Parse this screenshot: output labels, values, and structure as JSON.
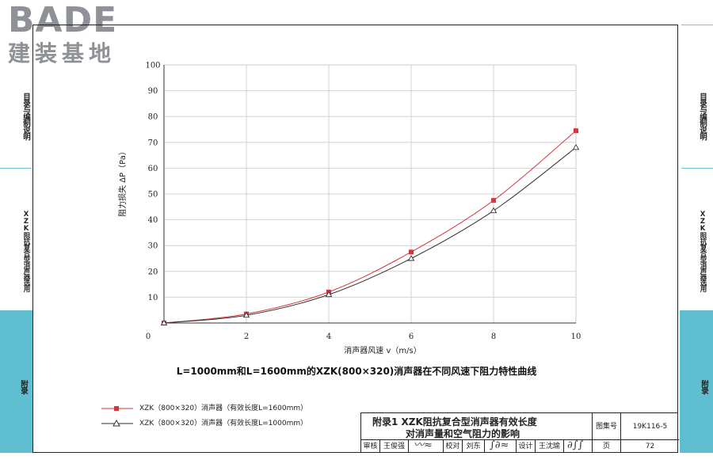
{
  "logo": {
    "brand_en": "BADE",
    "brand_cn": "建装基地"
  },
  "side_tabs": {
    "tab1": "目录与编制说明",
    "tab2": "XZK阻抗复合型消声器选用",
    "tab3": "附录"
  },
  "caption": "L=1000mm和L=1600mm的XZK(800×320)消声器在不同风速下阻力特性曲线",
  "legend": {
    "series1": "XZK（800×320）消声器（有效长度L=1600mm）",
    "series2": "XZK（800×320）消声器（有效长度L=1000mm）"
  },
  "chart_data": {
    "type": "line",
    "xlabel": "消声器风速 v（m/s）",
    "ylabel": "阻力损失 ΔP（Pa）",
    "xlim": [
      0,
      10
    ],
    "ylim": [
      0,
      100
    ],
    "x_ticks": [
      "0",
      "2",
      "4",
      "6",
      "8",
      "10"
    ],
    "y_ticks": [
      "10",
      "20",
      "30",
      "40",
      "50",
      "60",
      "70",
      "80",
      "90",
      "100"
    ],
    "grid": true,
    "series": [
      {
        "name": "XZK（800×320）消声器（有效长度L=1600mm）",
        "marker": "square",
        "color": "#d9343c",
        "x": [
          0,
          2,
          4,
          6,
          8,
          10
        ],
        "y": [
          0,
          3.5,
          12,
          27.5,
          47.5,
          74.5
        ]
      },
      {
        "name": "XZK（800×320）消声器（有效长度L=1000mm）",
        "marker": "triangle",
        "color": "#333333",
        "x": [
          0,
          2,
          4,
          6,
          8,
          10
        ],
        "y": [
          0,
          3,
          11,
          25,
          43.5,
          68
        ]
      }
    ]
  },
  "title_block": {
    "title_line1": "附录1   XZK阻抗复合型消声器有效长度",
    "title_line2": "对消声量和空气阻力的影响",
    "atlas_label": "图集号",
    "atlas_no": "19K116-5",
    "page_label": "页",
    "page_no": "72",
    "review_label": "审核",
    "review_name": "王俊强",
    "check_label": "校对",
    "check_name": "刘东",
    "design_label": "设计",
    "design_name": "王沈瑜"
  }
}
